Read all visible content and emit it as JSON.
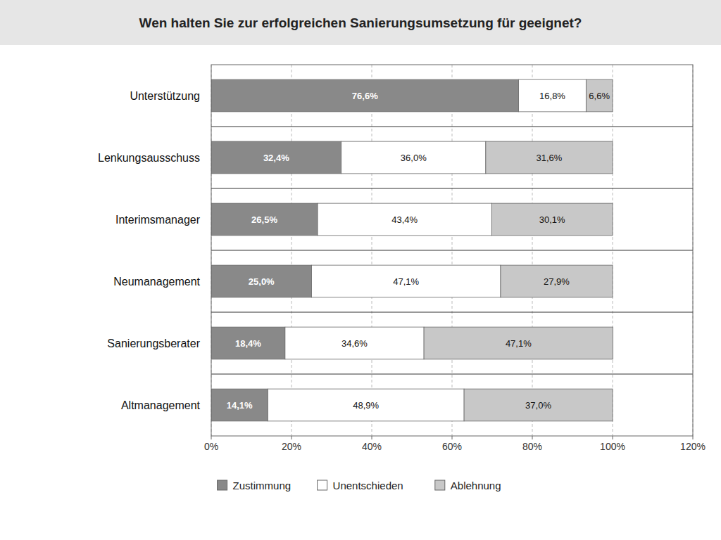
{
  "chart_data": {
    "type": "bar",
    "orientation": "horizontal",
    "stacked": true,
    "title": "Wen halten Sie zur erfolgreichen Sanierungsumsetzung für geeignet?",
    "categories": [
      "Unterstützung",
      "Lenkungsausschuss",
      "Interimsmanager",
      "Neumanagement",
      "Sanierungsberater",
      "Altmanagement"
    ],
    "series": [
      {
        "name": "Zustimmung",
        "color": "#898989",
        "values": [
          76.6,
          32.4,
          26.5,
          25.0,
          18.4,
          14.1
        ],
        "value_labels": [
          "76,6%",
          "32,4%",
          "26,5%",
          "25,0%",
          "18,4%",
          "14,1%"
        ]
      },
      {
        "name": "Unentschieden",
        "color": "#ffffff",
        "values": [
          16.8,
          36.0,
          43.4,
          47.1,
          34.6,
          48.9
        ],
        "value_labels": [
          "16,8%",
          "36,0%",
          "43,4%",
          "47,1%",
          "34,6%",
          "48,9%"
        ]
      },
      {
        "name": "Ablehnung",
        "color": "#c8c8c8",
        "values": [
          6.6,
          31.6,
          30.1,
          27.9,
          47.1,
          37.0
        ],
        "value_labels": [
          "6,6%",
          "31,6%",
          "30,1%",
          "27,9%",
          "47,1%",
          "37,0%"
        ]
      }
    ],
    "xlim": [
      0,
      120
    ],
    "xticks": [
      {
        "value": 0,
        "label": "0%"
      },
      {
        "value": 20,
        "label": "20%"
      },
      {
        "value": 40,
        "label": "40%"
      },
      {
        "value": 60,
        "label": "60%"
      },
      {
        "value": 80,
        "label": "80%"
      },
      {
        "value": 100,
        "label": "100%"
      },
      {
        "value": 120,
        "label": "120%"
      }
    ],
    "grid": true,
    "data_labels": true,
    "legend": "bottom"
  }
}
